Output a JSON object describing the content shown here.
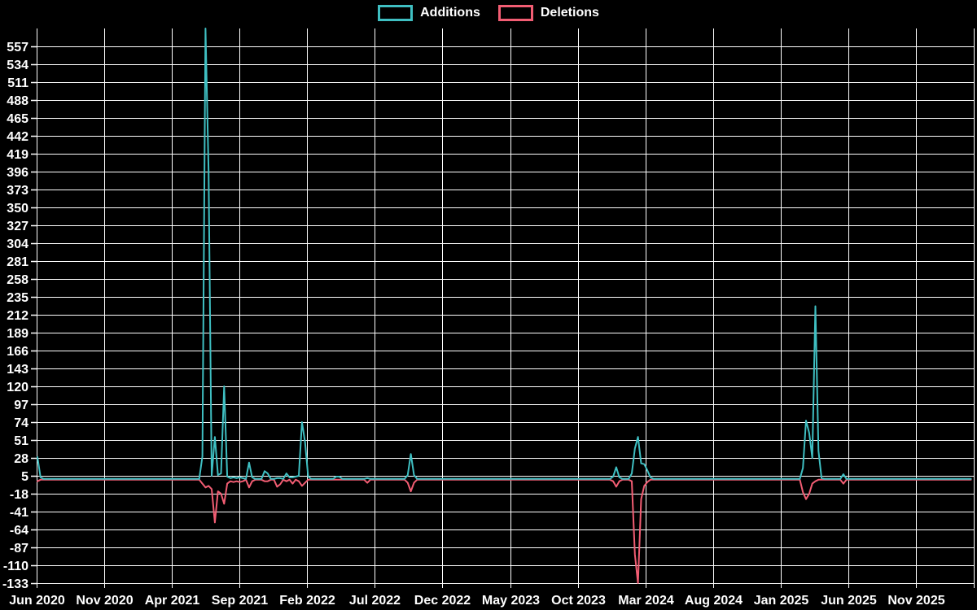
{
  "colors": {
    "background": "#000000",
    "grid": "#ffffff",
    "text": "#ffffff",
    "additions": "#3fbfc2",
    "deletions": "#f25d73"
  },
  "legend": {
    "items": [
      {
        "label": "Additions",
        "color": "#3fbfc2"
      },
      {
        "label": "Deletions",
        "color": "#f25d73"
      }
    ]
  },
  "chart_data": {
    "type": "line",
    "title": "",
    "xlabel": "",
    "ylabel": "",
    "grid": true,
    "legend_position": "top-center",
    "x_unit": "weeks",
    "x_tick_labels": [
      "Jun 2020",
      "Nov 2020",
      "Apr 2021",
      "Sep 2021",
      "Feb 2022",
      "Jul 2022",
      "Dec 2022",
      "May 2023",
      "Oct 2023",
      "Mar 2024",
      "Aug 2024",
      "Jan 2025",
      "Jun 2025",
      "Nov 2025"
    ],
    "y_tick_labels": [
      557,
      534,
      511,
      488,
      465,
      442,
      419,
      396,
      373,
      350,
      327,
      304,
      281,
      258,
      235,
      212,
      189,
      166,
      143,
      120,
      97,
      74,
      51,
      28,
      5,
      -18,
      -41,
      -64,
      -87,
      -110,
      -133
    ],
    "ylim": [
      -133,
      580
    ],
    "total_weeks": 301,
    "series": [
      {
        "name": "Additions",
        "color": "#3fbfc2",
        "baseline": 1,
        "points": {
          "0": 29,
          "1": 3,
          "53": 30,
          "54": 580,
          "55": 396,
          "56": 5,
          "57": 55,
          "58": 6,
          "59": 8,
          "60": 120,
          "61": 4,
          "62": 2,
          "63": 3,
          "64": 2,
          "65": 3,
          "66": 2,
          "68": 22,
          "69": 3,
          "73": 11,
          "74": 8,
          "77": 2,
          "78": 2,
          "80": 8,
          "81": 3,
          "82": 3,
          "83": 4,
          "84": 5,
          "85": 74,
          "86": 48,
          "87": 4,
          "96": 4,
          "97": 4,
          "106": 2,
          "119": 6,
          "120": 33,
          "121": 6,
          "185": 4,
          "186": 16,
          "187": 3,
          "191": 8,
          "192": 40,
          "193": 55,
          "194": 21,
          "195": 20,
          "196": 12,
          "197": 3,
          "246": 15,
          "247": 76,
          "248": 60,
          "249": 28,
          "250": 223,
          "251": 37,
          "252": 2,
          "259": 7,
          "300": 1
        }
      },
      {
        "name": "Deletions",
        "color": "#f25d73",
        "baseline": 0,
        "points": {
          "0": -2,
          "53": -5,
          "54": -10,
          "55": -8,
          "56": -12,
          "57": -55,
          "58": -15,
          "59": -18,
          "60": -31,
          "61": -5,
          "62": -2,
          "63": -3,
          "64": -2,
          "65": -3,
          "66": -2,
          "68": -10,
          "69": -2,
          "73": -2,
          "74": -2,
          "77": -9,
          "78": -6,
          "80": -2,
          "82": -5,
          "84": -2,
          "85": -8,
          "86": -4,
          "106": -4,
          "119": -4,
          "120": -15,
          "121": -4,
          "185": -2,
          "186": -9,
          "187": -2,
          "191": -2,
          "192": -96,
          "193": -133,
          "194": -25,
          "195": -8,
          "196": -3,
          "246": -16,
          "247": -25,
          "248": -18,
          "249": -5,
          "250": -2,
          "259": -5
        }
      }
    ]
  }
}
